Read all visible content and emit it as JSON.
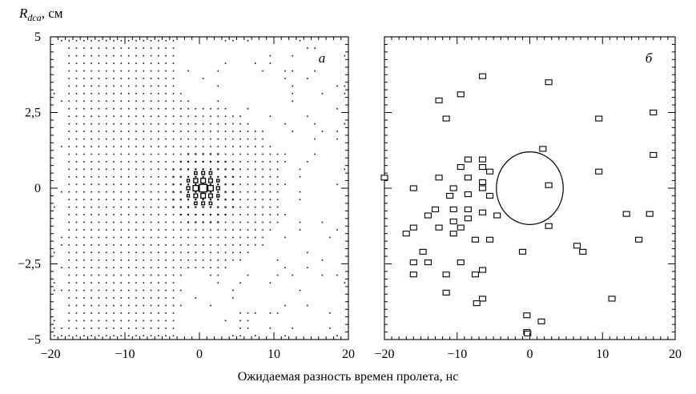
{
  "figure": {
    "ylabel_main": "R",
    "ylabel_sub": "dca",
    "ylabel_unit": ", см",
    "xlabel": "Ожидаемая разность времен пролета, нс"
  },
  "chart_data": [
    {
      "type": "heatmap",
      "panel_label": "а",
      "xlim": [
        -20,
        20
      ],
      "ylim": [
        -5,
        5
      ],
      "x_ticks": [
        -20,
        -10,
        0,
        10,
        20
      ],
      "x_tick_labels": [
        "−20",
        "−10",
        "0",
        "10",
        "20"
      ],
      "y_ticks": [
        5,
        2.5,
        0,
        -2.5,
        -5
      ],
      "y_tick_labels": [
        "5",
        "2,5",
        "0",
        "−2,5",
        "−5"
      ],
      "grid": false,
      "bin_width_x": 1,
      "bin_width_y": 0.25,
      "peak": [
        0.5,
        0
      ],
      "boxes": [
        {
          "x": 0.5,
          "y": 0.0,
          "size": 1.0
        },
        {
          "x": -0.5,
          "y": 0.0,
          "size": 0.72
        },
        {
          "x": 1.5,
          "y": 0.0,
          "size": 0.72
        },
        {
          "x": 0.5,
          "y": 0.25,
          "size": 0.62
        },
        {
          "x": 0.5,
          "y": -0.25,
          "size": 0.62
        },
        {
          "x": -0.5,
          "y": 0.25,
          "size": 0.55
        },
        {
          "x": 1.5,
          "y": 0.25,
          "size": 0.5
        },
        {
          "x": -0.5,
          "y": -0.25,
          "size": 0.5
        },
        {
          "x": 1.5,
          "y": -0.25,
          "size": 0.5
        },
        {
          "x": 2.5,
          "y": 0.0,
          "size": 0.42
        },
        {
          "x": -1.5,
          "y": 0.0,
          "size": 0.42
        },
        {
          "x": 0.5,
          "y": 0.5,
          "size": 0.4
        },
        {
          "x": 0.5,
          "y": -0.5,
          "size": 0.4
        },
        {
          "x": -0.5,
          "y": 0.5,
          "size": 0.36
        },
        {
          "x": 1.5,
          "y": 0.5,
          "size": 0.36
        },
        {
          "x": -0.5,
          "y": -0.5,
          "size": 0.36
        },
        {
          "x": 1.5,
          "y": -0.5,
          "size": 0.36
        },
        {
          "x": 2.5,
          "y": 0.25,
          "size": 0.33
        },
        {
          "x": 2.5,
          "y": -0.25,
          "size": 0.33
        },
        {
          "x": -1.5,
          "y": 0.25,
          "size": 0.33
        },
        {
          "x": -1.5,
          "y": -0.25,
          "size": 0.33
        }
      ]
    },
    {
      "type": "scatter",
      "panel_label": "б",
      "xlim": [
        -20,
        20
      ],
      "ylim": [
        -5,
        5
      ],
      "x_ticks": [
        -20,
        -10,
        0,
        10,
        20
      ],
      "x_tick_labels": [
        "−20",
        "−10",
        "0",
        "10",
        "20"
      ],
      "y_ticks": [
        5,
        2.5,
        0,
        -2.5,
        -5
      ],
      "grid": false,
      "circle": {
        "cx": 0,
        "cy": 0,
        "rx": 4.6,
        "ry": 1.2
      },
      "points": [
        [
          -6.5,
          3.7
        ],
        [
          2.6,
          3.5
        ],
        [
          -12.5,
          2.9
        ],
        [
          -9.5,
          3.1
        ],
        [
          -11.5,
          2.3
        ],
        [
          9.5,
          2.3
        ],
        [
          17,
          2.5
        ],
        [
          17,
          1.1
        ],
        [
          1.8,
          1.3
        ],
        [
          9.5,
          0.55
        ],
        [
          -8.5,
          0.95
        ],
        [
          -9.5,
          0.7
        ],
        [
          -6.5,
          0.95
        ],
        [
          -6.5,
          0.7
        ],
        [
          -5.5,
          0.55
        ],
        [
          -12.5,
          0.35
        ],
        [
          -8.5,
          0.35
        ],
        [
          -6.5,
          0.2
        ],
        [
          -20,
          0.35
        ],
        [
          -16,
          0.0
        ],
        [
          -10.5,
          0.0
        ],
        [
          -6.5,
          0.0
        ],
        [
          -5.5,
          -0.25
        ],
        [
          -8.5,
          -0.2
        ],
        [
          -11,
          -0.25
        ],
        [
          2.6,
          0.1
        ],
        [
          -4.5,
          -0.9
        ],
        [
          -13,
          -0.7
        ],
        [
          -14,
          -0.9
        ],
        [
          -10.5,
          -0.7
        ],
        [
          -8.5,
          -0.7
        ],
        [
          -8.5,
          -1.0
        ],
        [
          -10.5,
          -1.1
        ],
        [
          -6.5,
          -0.8
        ],
        [
          -12.5,
          -1.3
        ],
        [
          -16,
          -1.3
        ],
        [
          -17,
          -1.5
        ],
        [
          -10.5,
          -1.5
        ],
        [
          -9.5,
          -1.3
        ],
        [
          -7.5,
          -1.7
        ],
        [
          -5.5,
          -1.7
        ],
        [
          2.6,
          -1.25
        ],
        [
          6.5,
          -1.9
        ],
        [
          7.3,
          -2.1
        ],
        [
          13.3,
          -0.85
        ],
        [
          16.5,
          -0.85
        ],
        [
          15,
          -1.7
        ],
        [
          -14.7,
          -2.1
        ],
        [
          -1,
          -2.1
        ],
        [
          -16,
          -2.45
        ],
        [
          -14,
          -2.45
        ],
        [
          -9.5,
          -2.45
        ],
        [
          -6.5,
          -2.7
        ],
        [
          -16,
          -2.85
        ],
        [
          -11.5,
          -2.85
        ],
        [
          -7.5,
          -2.85
        ],
        [
          -11.5,
          -3.45
        ],
        [
          -6.5,
          -3.65
        ],
        [
          -7.3,
          -3.8
        ],
        [
          11.3,
          -3.65
        ],
        [
          -0.4,
          -4.2
        ],
        [
          1.6,
          -4.4
        ],
        [
          -0.4,
          -4.75
        ],
        [
          -0.3,
          -4.8
        ]
      ]
    }
  ]
}
